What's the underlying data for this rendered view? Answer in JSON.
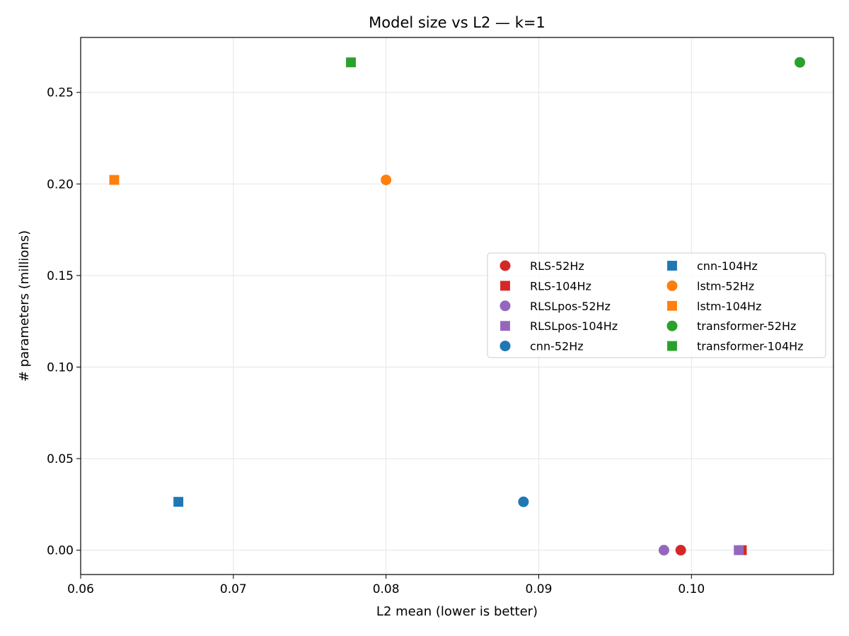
{
  "chart_data": {
    "type": "scatter",
    "title": "Model size vs L2 — k=1",
    "xlabel": "L2 mean (lower is better)",
    "ylabel": "# parameters (millions)",
    "xlim": [
      0.06,
      0.1093
    ],
    "ylim": [
      -0.0133,
      0.28
    ],
    "xticks": [
      0.06,
      0.07,
      0.08,
      0.09,
      0.1
    ],
    "xtick_labels": [
      "0.06",
      "0.07",
      "0.08",
      "0.09",
      "0.10"
    ],
    "yticks": [
      0.0,
      0.05,
      0.1,
      0.15,
      0.2,
      0.25
    ],
    "ytick_labels": [
      "0.00",
      "0.05",
      "0.10",
      "0.15",
      "0.20",
      "0.25"
    ],
    "grid": true,
    "legend_position": "center-right",
    "series": [
      {
        "name": "RLS-52Hz",
        "color": "#d62728",
        "marker": "circle",
        "points": [
          {
            "x": 0.0993,
            "y": 0.0
          }
        ]
      },
      {
        "name": "RLS-104Hz",
        "color": "#d62728",
        "marker": "square",
        "points": [
          {
            "x": 0.1033,
            "y": 0.0
          }
        ]
      },
      {
        "name": "RLSLpos-52Hz",
        "color": "#9467bd",
        "marker": "circle",
        "points": [
          {
            "x": 0.0982,
            "y": 0.0
          }
        ]
      },
      {
        "name": "RLSLpos-104Hz",
        "color": "#9467bd",
        "marker": "square",
        "points": [
          {
            "x": 0.1031,
            "y": 0.0
          }
        ]
      },
      {
        "name": "cnn-52Hz",
        "color": "#1f77b4",
        "marker": "circle",
        "points": [
          {
            "x": 0.089,
            "y": 0.0264
          }
        ]
      },
      {
        "name": "cnn-104Hz",
        "color": "#1f77b4",
        "marker": "square",
        "points": [
          {
            "x": 0.0664,
            "y": 0.0264
          }
        ]
      },
      {
        "name": "lstm-52Hz",
        "color": "#ff7f0e",
        "marker": "circle",
        "points": [
          {
            "x": 0.08,
            "y": 0.2022
          }
        ]
      },
      {
        "name": "lstm-104Hz",
        "color": "#ff7f0e",
        "marker": "square",
        "points": [
          {
            "x": 0.0622,
            "y": 0.2022
          }
        ]
      },
      {
        "name": "transformer-52Hz",
        "color": "#2ca02c",
        "marker": "circle",
        "points": [
          {
            "x": 0.1071,
            "y": 0.2664
          }
        ]
      },
      {
        "name": "transformer-104Hz",
        "color": "#2ca02c",
        "marker": "square",
        "points": [
          {
            "x": 0.0777,
            "y": 0.2664
          }
        ]
      }
    ]
  }
}
